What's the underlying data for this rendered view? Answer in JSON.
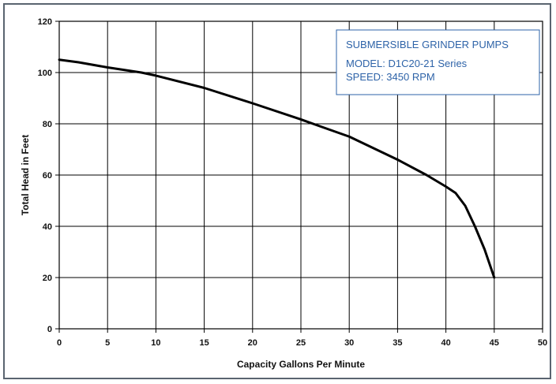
{
  "chart_data": {
    "type": "line",
    "title": "",
    "xlabel": "Capacity Gallons Per Minute",
    "ylabel": "Total Head in Feet",
    "xlim": [
      0,
      50
    ],
    "ylim": [
      0,
      120
    ],
    "x_ticks": [
      "0",
      "5",
      "10",
      "15",
      "20",
      "25",
      "30",
      "35",
      "40",
      "45",
      "50"
    ],
    "y_ticks": [
      "0",
      "20",
      "40",
      "60",
      "80",
      "100",
      "120"
    ],
    "grid": true,
    "series": [
      {
        "x": [
          0,
          2,
          5,
          8.5,
          10,
          15,
          20,
          25,
          27,
          30,
          35,
          38,
          40,
          41,
          42,
          43,
          44,
          45
        ],
        "y": [
          105,
          104,
          102,
          100,
          98.8,
          94,
          88,
          81.7,
          79,
          75,
          66,
          60,
          55.5,
          53,
          48,
          40,
          31,
          20
        ],
        "color": "#000000"
      }
    ],
    "legend_box": {
      "lines": [
        "SUBMERSIBLE GRINDER PUMPS",
        "MODEL:  D1C20-21 Series",
        "SPEED:  3450 RPM"
      ],
      "placement": "top-right",
      "text_color": "#2e63a8"
    }
  }
}
